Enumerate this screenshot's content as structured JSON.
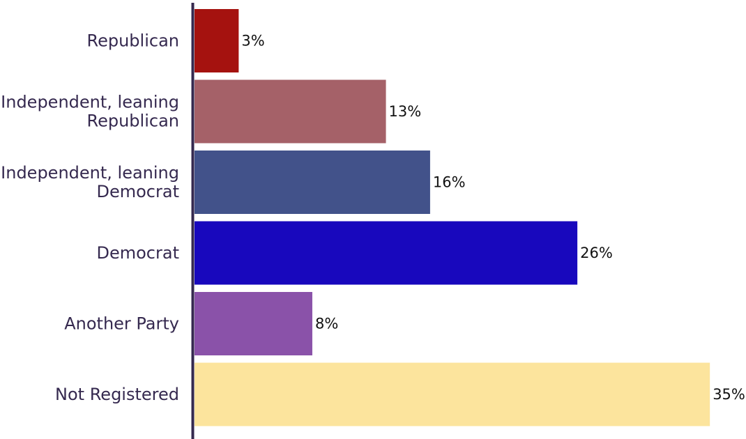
{
  "chart_data": {
    "type": "bar",
    "orientation": "horizontal",
    "categories": [
      "Republican",
      "Independent, leaning Republican",
      "Independent, leaning Democrat",
      "Democrat",
      "Another Party",
      "Not Registered"
    ],
    "category_lines": [
      [
        "Republican"
      ],
      [
        "Independent, leaning",
        "Republican"
      ],
      [
        "Independent, leaning",
        "Democrat"
      ],
      [
        "Democrat"
      ],
      [
        "Another Party"
      ],
      [
        "Not Registered"
      ]
    ],
    "values": [
      3,
      13,
      16,
      26,
      8,
      35
    ],
    "value_labels": [
      "3%",
      "13%",
      "16%",
      "26%",
      "8%",
      "35%"
    ],
    "colors": [
      "#a5120f",
      "#a56168",
      "#42528a",
      "#1808bd",
      "#8a52a9",
      "#fce49d"
    ],
    "axis_color": "#35294f",
    "xlim": [
      0,
      35
    ],
    "grid": false,
    "legend": "none"
  }
}
